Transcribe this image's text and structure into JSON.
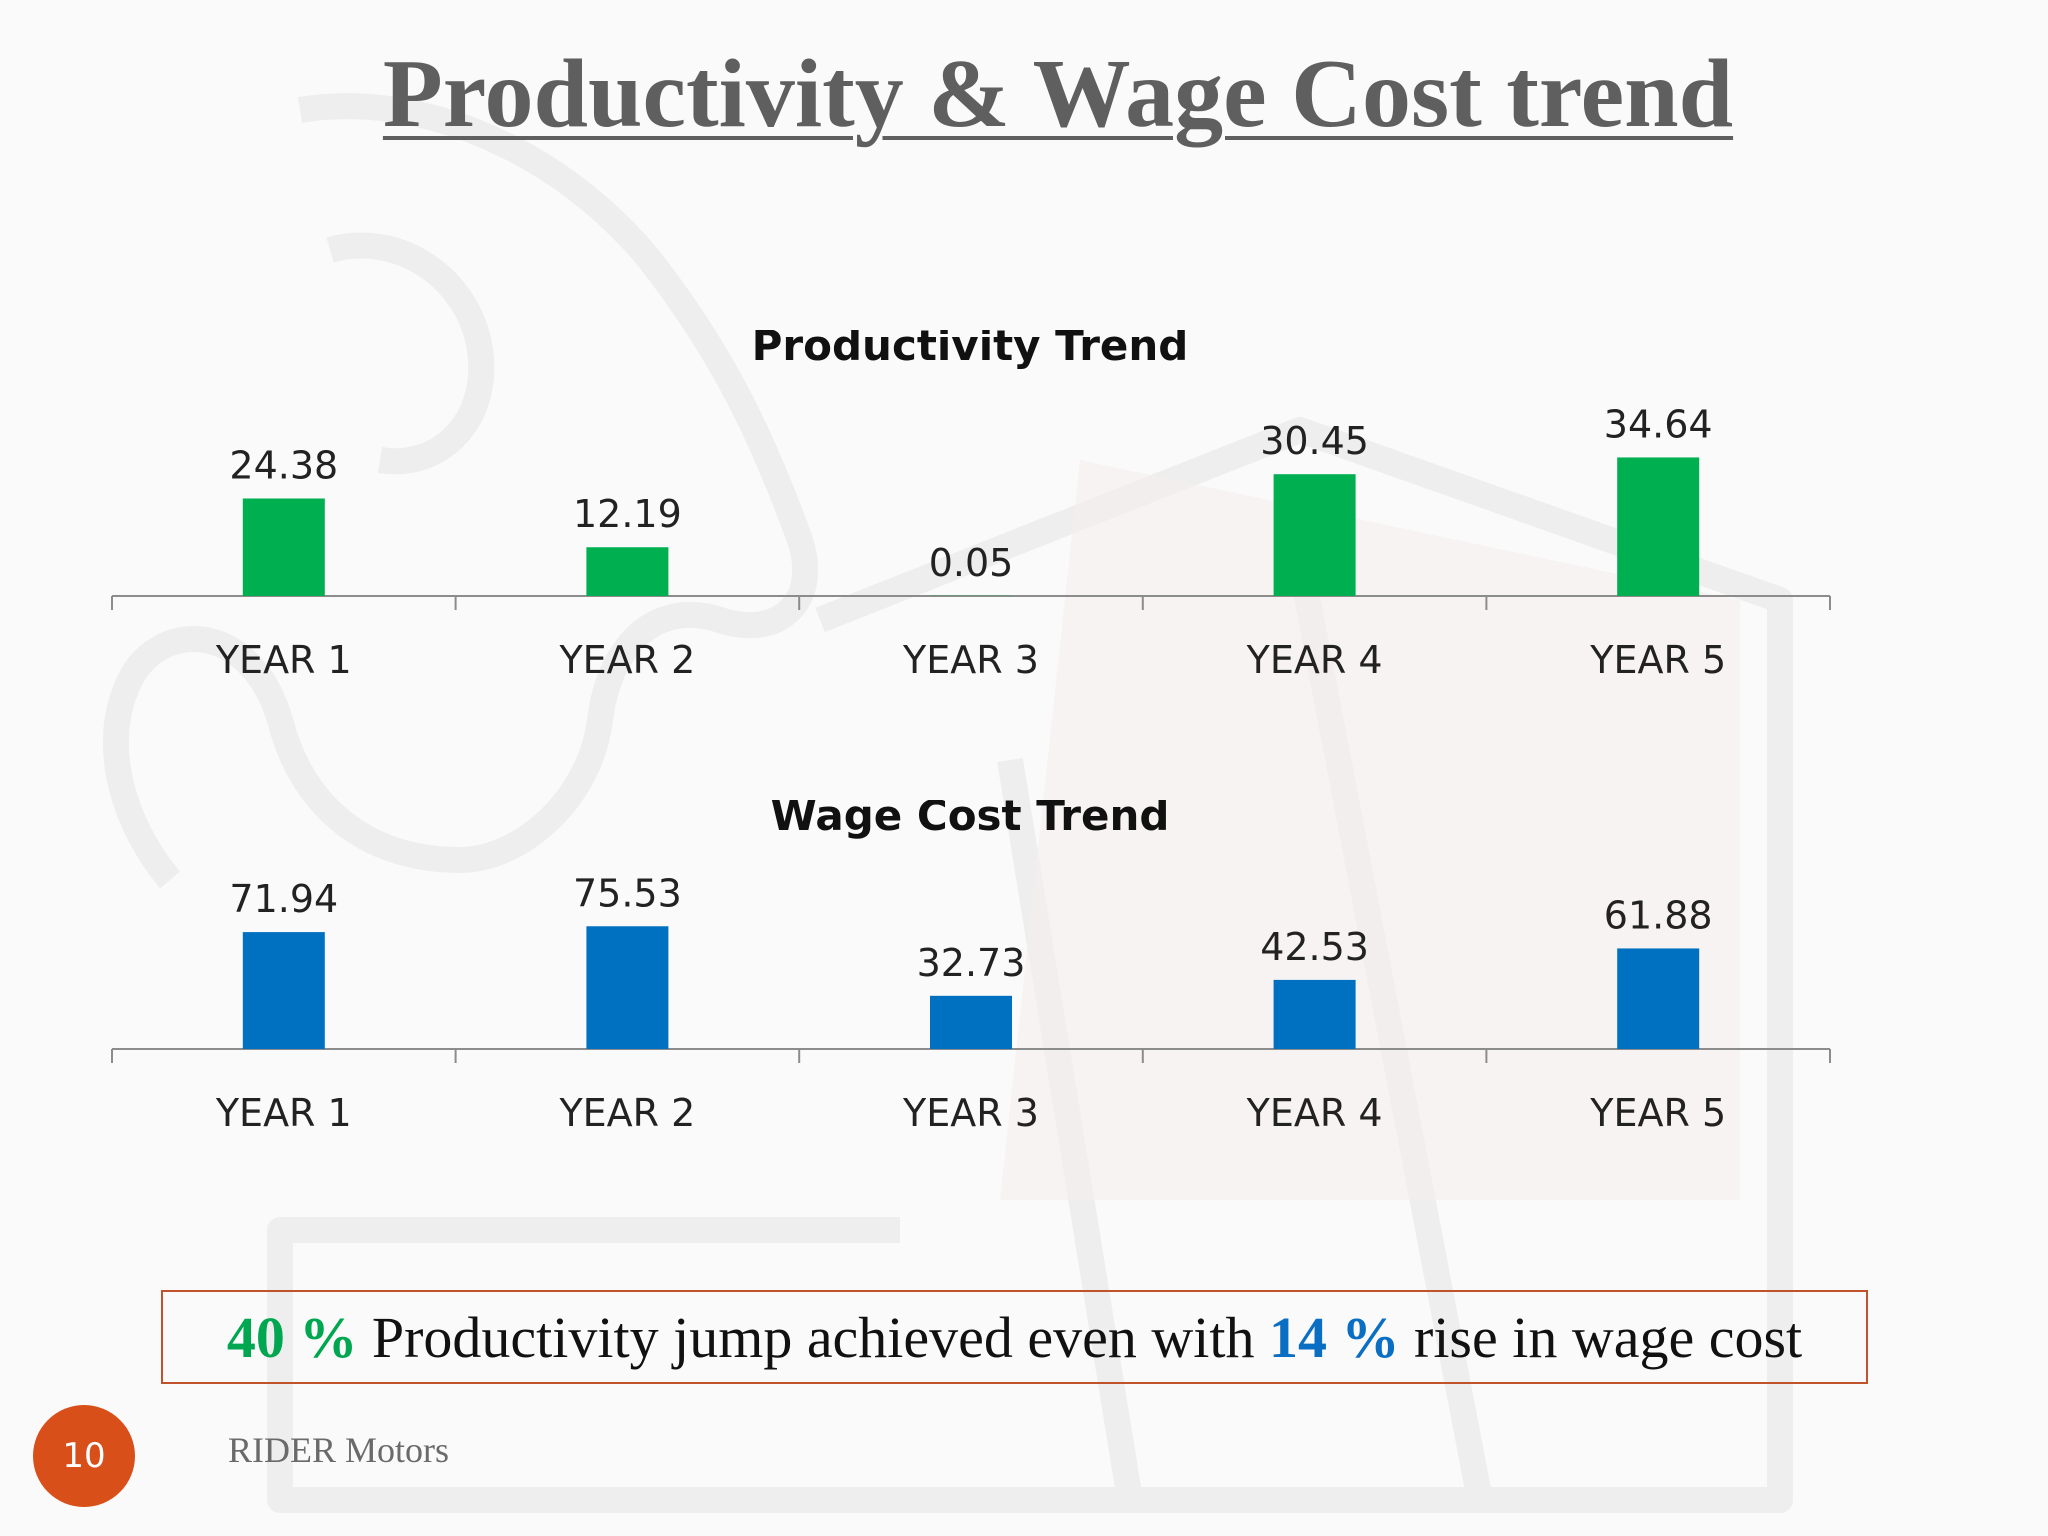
{
  "slide": {
    "title": "Productivity & Wage Cost trend",
    "callout": {
      "pct1": "40 %",
      "text1": " Productivity jump achieved even with ",
      "pct2": "14 %",
      "text2": " rise in wage cost"
    },
    "page_number": "10",
    "footer": "RIDER Motors"
  },
  "colors": {
    "productivity_bar": "#00b050",
    "wage_bar": "#0070c0",
    "callout_border": "#c0532b",
    "page_badge": "#d94f1a",
    "title": "#5f5f5f"
  },
  "chart_data": [
    {
      "type": "bar",
      "title": "Productivity Trend",
      "categories": [
        "YEAR 1",
        "YEAR 2",
        "YEAR 3",
        "YEAR 4",
        "YEAR 5"
      ],
      "values": [
        24.38,
        12.19,
        0.05,
        30.45,
        34.64
      ],
      "value_labels": [
        "24.38",
        "12.19",
        "0.05",
        "30.45",
        "34.64"
      ],
      "ylim": [
        0,
        40
      ],
      "grid": false,
      "legend": "none"
    },
    {
      "type": "bar",
      "title": "Wage Cost Trend",
      "categories": [
        "YEAR 1",
        "YEAR 2",
        "YEAR 3",
        "YEAR 4",
        "YEAR 5"
      ],
      "values": [
        71.94,
        75.53,
        32.73,
        42.53,
        61.88
      ],
      "value_labels": [
        "71.94",
        "75.53",
        "32.73",
        "42.53",
        "61.88"
      ],
      "ylim": [
        0,
        80
      ],
      "grid": false,
      "legend": "none"
    }
  ]
}
